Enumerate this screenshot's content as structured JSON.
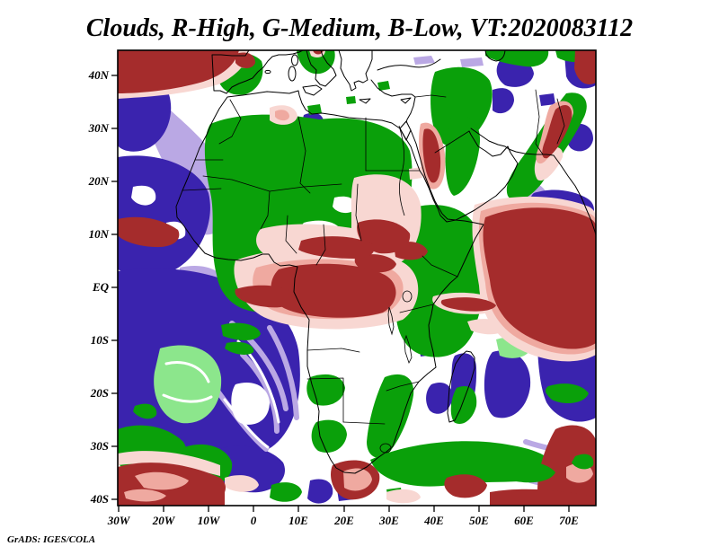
{
  "window": {
    "title": "Clouds, R-High, G-Medium, B-Low, VT:2020083112"
  },
  "attribution": "GrADS: IGES/COLA",
  "axes": {
    "lat_labels": [
      "40N",
      "30N",
      "20N",
      "10N",
      "EQ",
      "10S",
      "20S",
      "30S",
      "40S"
    ],
    "lon_labels": [
      "30W",
      "20W",
      "10W",
      "0",
      "10E",
      "20E",
      "30E",
      "40E",
      "50E",
      "60E",
      "70E"
    ]
  },
  "legend": {
    "red_channel": "R-High (high clouds)",
    "green_channel": "G-Medium (medium clouds)",
    "blue_channel": "B-Low (low clouds)",
    "valid_time": "2020083112"
  },
  "colors": {
    "high": "#a52c2c",
    "high_mid": "#efa9a0",
    "high_faint": "#f8d7d2",
    "medium": "#0aa00a",
    "medium_light": "#8ce68c",
    "low": "#3a23ae",
    "low_faint": "#baa8e4",
    "background": "#ffffff",
    "coastline": "#000000"
  },
  "chart_data": {
    "type": "heatmap",
    "title": "Clouds, R-High, G-Medium, B-Low, VT:2020083112",
    "x_axis": {
      "labels": [
        "30W",
        "20W",
        "10W",
        "0",
        "10E",
        "20E",
        "30E",
        "40E",
        "50E",
        "60E",
        "70E"
      ],
      "range_deg": [
        -30,
        76
      ]
    },
    "y_axis": {
      "labels": [
        "40N",
        "30N",
        "20N",
        "10N",
        "EQ",
        "10S",
        "20S",
        "30S",
        "40S"
      ],
      "range_deg": [
        -40.6,
        44
      ]
    },
    "grid": false,
    "features": [
      {
        "color": "red",
        "meaning": "high cloud",
        "locations": [
          "Bay of Biscay and SW France",
          "NW Spain spot",
          "NE corner of domain",
          "NW Iran-Afghanistan diagonal streak",
          "Red Sea coast of Sudan",
          "pink mass over Sudan with dark streaks",
          "equatorial Congo basin band with pink halo",
          "Atlantic band near 10N off West Africa",
          "large mass over western Indian Ocean / Arabian Sea",
          "Mozambique channel streaks",
          "southern edge of domain near 40S",
          "SE corner wedge"
        ]
      },
      {
        "color": "green",
        "meaning": "medium cloud",
        "locations": [
          "Iberia",
          "Alps edge",
          "Morocco-Sahel-Sahara large mass",
          "Iraq-Caucasus mass",
          "Iran diagonal band",
          "flanks of the Red Sea",
          "Ethiopia and East Africa",
          "light-green patch in South Atlantic",
          "Angola coast patches",
          "SW corner patches",
          "diagonal band southeast of South Africa",
          "band east of Madagascar"
        ]
      },
      {
        "color": "blue",
        "meaning": "low cloud",
        "locations": [
          "NE Atlantic off Morocco with lavender streaks",
          "large South Atlantic stratocumulus deck with lavender texture",
          "Caspian-Caucasus patches",
          "Pakistan coast patches",
          "Arabian Sea lavender patch",
          "Madagascar and SW Indian Ocean",
          "bottom-centre ocean",
          "lavender streaks in SE corner"
        ]
      }
    ],
    "layers": [
      {
        "name": "low-cloud-faint",
        "color": "#baa8e4",
        "mode": "fill",
        "paths": [
          "M165,100 C190,125 225,150 248,185 C262,210 258,245 242,258 C225,268 205,255 200,230 C193,200 178,175 168,150 C158,128 156,112 165,100 Z",
          "M235,155 C255,175 272,198 268,225 C263,243 248,240 243,220 C237,197 228,172 235,155 Z",
          "M460,64 L480,62 L484,70 L462,72 Z",
          "M512,66 L536,64 L538,73 L514,75 Z",
          "M140,218 C165,212 190,218 198,232 C190,242 160,240 145,235 Z",
          "M200,298 C225,292 248,300 250,315 C240,330 210,330 200,318 Z",
          "M572,205 C590,198 608,205 610,222 C610,238 594,248 578,242 C566,235 564,215 572,205 Z"
        ]
      },
      {
        "name": "low-cloud",
        "color": "#3a23ae",
        "mode": "fill",
        "paths": [
          "M131,85 C155,82 180,88 188,105 C195,128 185,155 165,165 C150,172 135,168 131,162 Z",
          "M131,175 C175,168 220,185 232,215 C240,248 222,285 195,300 C170,310 140,305 131,300 Z",
          "M556,68 C575,62 592,68 594,82 C592,95 575,100 562,95 C552,88 550,76 556,68 Z",
          "M628,60 C645,55 660,58 663,70 L663,95 C650,102 635,98 630,85 Z",
          "M600,106 L616,104 L618,116 L602,118 Z",
          "M548,100 C562,95 572,100 572,112 C570,125 556,130 548,123 Z",
          "M632,140 C648,134 660,140 660,155 C658,168 644,172 635,165 C628,156 626,147 632,140 Z",
          "M594,215 C615,208 640,212 655,222 C663,228 663,240 655,245 C635,250 610,245 598,235 C590,228 588,220 594,215 Z",
          "M131,302 C175,295 225,300 258,315 C295,330 325,352 332,390 C338,435 330,478 302,498 C272,515 235,515 205,505 C175,497 148,505 131,498 Z",
          "M602,330 C630,322 655,332 663,345 L663,465 C645,475 620,468 608,448 C596,420 596,360 602,330 Z",
          "M548,392 C572,385 592,402 590,430 C587,456 568,470 550,464 C535,455 536,405 548,392 Z",
          "M480,428 C495,422 505,430 503,445 C500,460 486,465 478,457 C472,448 473,435 480,428 Z",
          "M506,396 C518,390 530,394 530,410 C531,438 524,462 513,470 C504,472 500,452 502,430 C503,412 502,403 506,396 Z",
          "M243,500 C270,492 300,498 315,515 C322,530 310,545 288,548 C262,550 240,540 236,522 C234,510 237,505 243,500 Z",
          "M345,535 C362,530 372,538 370,550 C366,562 350,564 342,555 Z",
          "M455,296 L468,294 L470,306 L457,308 Z",
          "M466,383 L482,381 L484,395 L468,397 Z",
          "M338,128 C352,122 362,128 360,140 C355,152 340,152 334,143 Z",
          "M303,145 C316,140 324,146 321,158 C314,166 302,162 301,152 Z",
          "M470,300 C482,295 490,300 488,312 C485,322 472,322 468,312 Z",
          "M470,330 C480,325 488,330 486,340 C482,348 470,346 467,338 Z",
          "M375,545 L392,543 L394,556 L377,558 Z"
        ]
      },
      {
        "name": "low-cloud-texture",
        "color": "#baa8e4",
        "mode": "stroke",
        "width": 6,
        "paths": [
          "M258,360 C290,385 312,420 318,455",
          "M270,395 C295,420 308,450 308,480",
          "M238,430 C260,460 278,485 296,500",
          "M300,365 C318,395 328,430 330,465",
          "M585,492 C610,500 635,505 655,503",
          "M578,515 C605,525 632,528 655,524",
          "M590,535 C615,542 638,544 658,540"
        ]
      },
      {
        "name": "cloud-free-gaps-low",
        "color": "#ffffff",
        "mode": "fill",
        "paths": [
          "M148,208 C165,204 175,210 173,222 C168,232 152,230 146,220 Z",
          "M185,248 C200,244 208,250 206,262 C200,270 188,266 183,258 Z",
          "M262,428 C282,422 298,430 300,448 C300,466 286,476 270,472 C256,468 254,440 262,428 Z"
        ]
      },
      {
        "name": "gap-streaks-low",
        "color": "#ffffff",
        "mode": "stroke",
        "width": 3,
        "paths": [
          "M265,380 C290,405 305,440 310,470",
          "M250,445 C268,468 283,487 298,498"
        ]
      },
      {
        "name": "medium-cloud-light",
        "color": "#8ce68c",
        "mode": "fill",
        "paths": [
          "M178,388 C212,378 242,390 246,420 C248,452 228,474 202,471 C178,466 168,438 172,414 Z",
          "M468,258 C490,250 508,255 510,268 C508,280 488,284 472,278 Z",
          "M552,378 C572,372 588,376 590,388 C588,398 570,402 556,396 Z",
          "M470,525 C485,520 495,525 493,535 C488,543 473,540 468,533 Z"
        ]
      },
      {
        "name": "gap-streaks-lightgreen",
        "color": "#ffffff",
        "mode": "stroke",
        "width": 3,
        "paths": [
          "M185,405 C205,400 225,408 232,425",
          "M182,440 C200,448 220,450 235,442"
        ]
      },
      {
        "name": "medium-cloud",
        "color": "#0aa00a",
        "mode": "fill",
        "paths": [
          "M244,60 C262,56 282,58 291,68 C296,84 288,100 273,105 C257,108 245,100 242,86 C240,74 240,66 244,60 Z",
          "M330,56 L372,56 C375,68 368,80 356,82 C342,84 332,72 330,56 Z",
          "M234,138 C268,124 315,126 355,133 C400,127 445,140 456,168 C464,200 450,240 456,275 C462,308 442,330 412,336 C372,346 332,340 302,346 C272,352 246,336 241,306 C232,270 241,240 233,210 C226,176 226,152 234,138 Z",
          "M540,56 L610,56 C612,68 600,76 585,74 C568,72 550,68 540,62 Z",
          "M618,56 L663,56 L663,62 C650,72 630,70 620,64 Z",
          "M484,80 C510,70 535,75 545,90 C552,108 545,130 530,148 C515,165 498,168 488,155 C478,140 476,100 484,80 Z",
          "M502,130 C520,124 535,135 534,158 C532,185 520,215 505,218 C494,212 492,160 502,130 Z",
          "M630,104 C648,100 658,112 650,130 C638,155 620,180 602,205 C588,222 572,230 565,218 C560,205 572,188 585,170 C600,148 615,122 630,104 Z",
          "M456,232 C492,222 522,232 532,258 C546,290 540,330 530,360 C522,392 496,402 472,396 C448,390 436,362 442,330 C448,300 442,262 456,232 Z",
          "M428,420 C448,412 462,420 460,440 C456,465 445,490 432,505 C420,515 408,508 408,492 C410,468 418,440 428,420 Z",
          "M345,420 C365,413 382,418 384,432 C382,448 365,455 350,450 C340,444 339,428 345,420 Z",
          "M352,470 C370,464 385,470 386,484 C384,500 368,508 354,502 C344,494 345,478 352,470 Z",
          "M131,478 C158,468 188,476 204,492 C214,508 204,524 182,528 C156,532 138,524 131,516 Z",
          "M205,498 C228,490 252,498 258,515 C260,532 244,544 222,542 C204,538 198,514 205,498 Z",
          "M150,452 C165,446 176,452 174,462 C168,470 154,466 148,458 Z",
          "M412,512 C455,492 520,486 570,496 C605,502 625,515 615,530 C590,540 545,534 500,540 C458,546 420,535 412,512 Z",
          "M636,505 C652,498 662,504 660,516 C654,526 640,522 634,514 Z",
          "M246,362 C268,356 288,362 290,372 C285,382 262,380 248,374 Z",
          "M252,382 C270,378 284,384 282,392 C275,398 258,394 250,388 Z",
          "M508,432 C522,426 532,434 530,452 C526,468 514,476 505,470 C499,460 502,442 508,432 Z",
          "M600,368 C625,360 650,364 663,372 L663,395 C640,405 612,402 600,392 C594,382 594,374 600,368 Z",
          "M610,430 C630,424 648,428 655,438 C650,450 628,452 614,445 C606,438 605,434 610,430 Z",
          "M342,118 L356,116 L358,126 L344,128 Z",
          "M420,92 L432,90 L434,99 L422,101 Z",
          "M385,108 L395,107 L396,115 L386,116 Z",
          "M540,246 L552,244 L554,253 L542,255 Z",
          "M302,540 C318,534 334,538 336,548 C332,560 312,562 300,554 Z",
          "M430,545 L446,543 L448,555 L432,557 Z"
        ]
      },
      {
        "name": "cloud-free-gaps-medium",
        "color": "#ffffff",
        "mode": "fill",
        "paths": [
          "M338,248 C360,242 380,248 382,262 C380,275 358,280 342,272 C332,263 332,254 338,248 Z",
          "M296,296 C312,292 322,298 320,308 C315,316 300,314 294,306 Z",
          "M372,220 C388,216 398,222 396,232 C390,240 375,238 370,230 Z"
        ]
      },
      {
        "name": "high-cloud-faint",
        "color": "#f8d7d2",
        "mode": "fill",
        "paths": [
          "M131,90 C170,95 215,88 248,76 C260,70 266,62 267,56 L277,56 C276,70 264,84 243,94 C205,106 160,108 131,110 Z",
          "M394,198 C428,188 462,198 468,228 C472,262 458,294 428,300 C402,304 390,280 391,250 C391,228 390,210 394,198 Z",
          "M262,290 C310,272 390,272 448,292 C472,305 470,340 448,356 C400,372 330,368 298,355 C272,345 255,312 262,290 Z",
          "M290,255 C330,245 380,250 420,260 C440,268 438,282 420,288 C380,295 320,292 298,285 C283,278 282,264 290,255 Z",
          "M528,228 C570,215 620,216 655,230 C663,234 663,240 663,245 L663,395 C640,408 605,402 580,390 C550,376 535,350 533,318 C528,288 522,255 528,228 Z",
          "M482,330 C510,322 545,326 558,338 C556,350 528,352 505,348 C488,344 478,338 482,330 Z",
          "M520,358 C540,352 558,356 562,366 C558,374 538,374 524,368 Z",
          "M600,170 C615,160 628,162 626,175 C618,192 605,205 598,200 C593,192 594,180 600,170 Z",
          "M300,120 C315,114 330,118 331,130 C328,140 310,142 300,134 Z",
          "M344,56 L362,56 C362,64 352,66 346,62 Z",
          "M258,58 C270,54 282,58 283,68 C280,78 266,78 260,70 Z",
          "M402,210 C412,206 420,210 419,218 C414,224 404,222 401,216 Z",
          "M455,188 L469,186 L470,198 L456,200 Z",
          "M250,532 C268,526 285,530 288,540 C284,550 262,550 250,542 Z",
          "M430,548 C448,542 466,545 468,554 C462,562 440,562 430,556 Z",
          "M131,505 C165,498 210,504 245,518 L245,530 C200,518 160,514 131,518 Z"
        ]
      },
      {
        "name": "high-cloud-mid",
        "color": "#efa9a0",
        "mode": "fill",
        "paths": [
          "M468,138 C480,132 492,146 495,172 C497,198 490,214 479,210 C468,202 463,158 468,138 Z",
          "M285,298 C330,285 390,285 435,300 C455,310 452,335 432,347 C390,360 330,356 305,346 C283,337 276,315 285,298 Z",
          "M535,235 C572,222 618,223 652,236 C663,240 663,244 663,248 L663,388 C642,400 610,394 586,382 C556,368 542,344 540,315 C535,288 530,260 535,235 Z",
          "M612,118 C626,108 638,112 638,126 C632,146 618,168 606,180 C598,186 594,178 598,168 C604,150 606,132 612,118 Z"
        ]
      },
      {
        "name": "high-cloud",
        "color": "#a52c2c",
        "mode": "fill",
        "paths": [
          "M131,56 L266,56 C262,72 248,84 226,91 C195,100 158,104 131,104 Z",
          "M262,60 C274,56 284,60 284,70 C281,78 268,78 262,70 Z",
          "M348,56 L360,56 C358,62 350,62 348,56 Z",
          "M640,56 L663,56 L663,92 C652,98 642,90 639,76 Z",
          "M618,122 C630,112 638,118 636,132 C630,152 618,170 609,176 C602,178 602,168 606,158 C611,145 613,133 618,122 Z",
          "M472,144 C482,140 488,154 490,176 C491,196 486,206 480,203 C472,196 468,158 472,144 Z",
          "M398,248 C420,240 446,246 456,260 C458,274 444,284 422,282 C404,278 394,260 398,248 Z",
          "M396,286 C414,280 436,284 441,294 C438,304 418,306 403,300 C395,296 393,290 396,286 Z",
          "M310,300 C345,290 400,292 428,306 C446,316 444,338 426,348 C392,358 340,354 318,344 C300,336 296,314 310,300 Z",
          "M335,268 C360,260 395,262 415,272 C420,280 412,288 395,288 C368,288 342,284 332,278 Z",
          "M438,272 C456,266 472,270 476,280 C472,290 454,292 440,286 Z",
          "M262,322 C288,314 318,318 330,328 C332,338 318,344 298,342 C276,340 258,332 262,322 Z",
          "M131,244 C158,238 182,245 198,256 C203,266 194,276 172,275 C148,274 134,266 131,262 Z",
          "M540,242 C575,228 618,228 650,240 C660,244 663,248 663,252 L663,382 C644,394 614,388 590,376 C562,362 548,340 545,312 C540,286 534,264 540,242 Z",
          "M492,334 C515,328 545,332 552,340 C548,348 522,348 505,344 C494,342 488,338 492,334 Z",
          "M131,520 C165,510 210,516 245,532 C255,540 252,552 240,558 L131,563 Z",
          "M131,545 L250,545 L250,563 L131,563 Z",
          "M370,518 C392,508 415,512 422,528 C425,545 408,558 388,556 C372,553 364,532 370,518 Z",
          "M497,532 C515,525 535,528 542,540 C540,552 520,558 504,552 C494,546 492,538 497,532 Z",
          "M618,478 C640,468 658,476 663,490 L663,563 L600,563 C594,540 602,505 618,478 Z",
          "M545,548 C580,542 620,545 655,552 L663,555 L663,563 L545,563 Z"
        ]
      },
      {
        "name": "high-cloud-marbling",
        "color": "#efa9a0",
        "mode": "fill",
        "paths": [
          "M150,530 C170,522 195,526 210,535 C205,545 180,548 160,543 Z",
          "M138,548 C155,542 175,545 185,552 C178,560 155,560 140,555 Z",
          "M382,525 C398,518 412,522 414,534 C411,546 394,550 383,543 Z",
          "M630,520 C645,512 658,516 660,528 C655,540 638,540 630,532 Z",
          "M306,124 C314,120 322,123 322,130 C320,136 310,135 306,130 Z"
        ]
      },
      {
        "name": "medium-cloud-over",
        "color": "#0aa00a",
        "mode": "fill",
        "paths": [
          "M558,518 C582,510 608,514 618,526 C612,538 586,540 566,534 C555,530 553,523 558,518 Z",
          "M640,508 C654,502 662,508 660,518 C653,526 640,522 636,515 Z"
        ]
      }
    ]
  }
}
